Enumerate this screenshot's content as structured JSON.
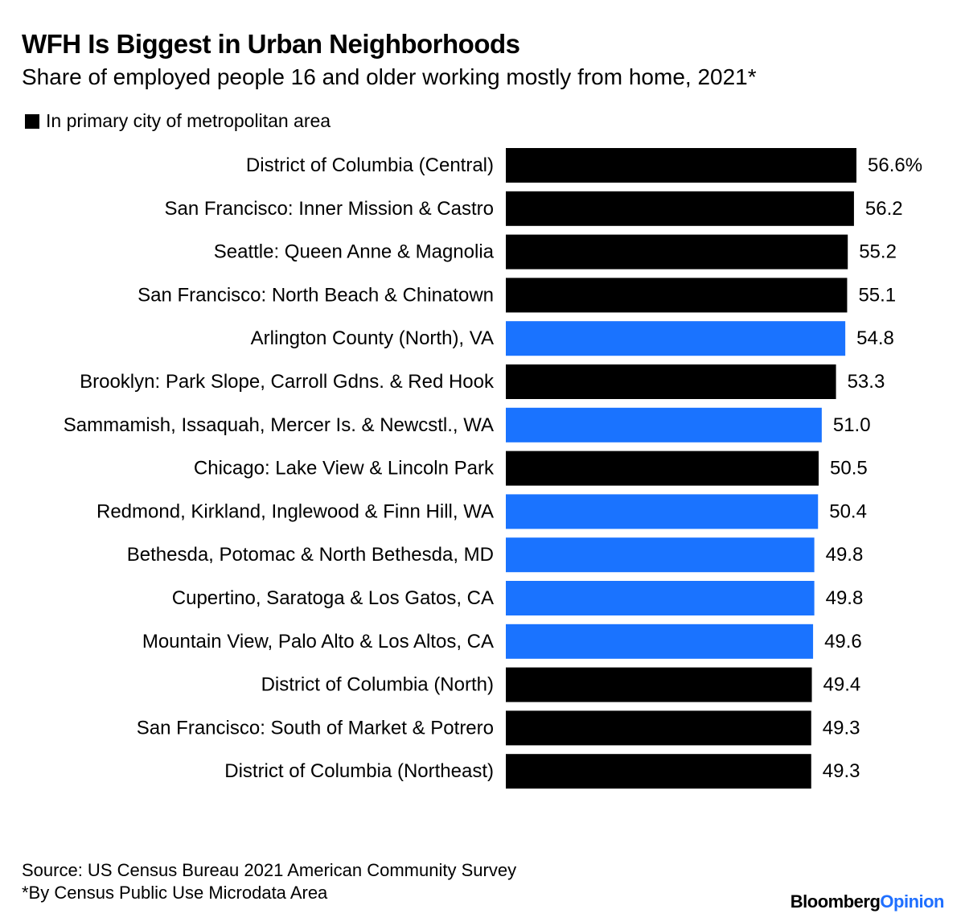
{
  "chart_data": {
    "type": "bar",
    "orientation": "horizontal",
    "title": "WFH Is Biggest in Urban Neighborhoods",
    "subtitle": "Share of employed people 16 and older working mostly from home, 2021*",
    "legend": {
      "label": "In primary city of metropolitan area",
      "color": "#000000",
      "placement": "top-left"
    },
    "colors": {
      "primary_city": "#000000",
      "other": "#1a73ff"
    },
    "value_suffix_first": "%",
    "categories": [
      "District of Columbia (Central)",
      "San Francisco: Inner Mission & Castro",
      "Seattle: Queen Anne & Magnolia",
      "San Francisco: North Beach & Chinatown",
      "Arlington County (North), VA",
      "Brooklyn: Park Slope, Carroll Gdns. & Red Hook",
      "Sammamish, Issaquah, Mercer Is. & Newcstl., WA",
      "Chicago: Lake View & Lincoln Park",
      "Redmond, Kirkland, Inglewood & Finn Hill, WA",
      "Bethesda, Potomac & North Bethesda, MD",
      "Cupertino, Saratoga & Los Gatos, CA",
      "Mountain View, Palo Alto & Los Altos, CA",
      "District of Columbia (North)",
      "San Francisco: South of Market & Potrero",
      "District of Columbia (Northeast)"
    ],
    "values": [
      56.6,
      56.2,
      55.2,
      55.1,
      54.8,
      53.3,
      51.0,
      50.5,
      50.4,
      49.8,
      49.8,
      49.6,
      49.4,
      49.3,
      49.3
    ],
    "value_labels": [
      "56.6%",
      "56.2",
      "55.2",
      "55.1",
      "54.8",
      "53.3",
      "51.0",
      "50.5",
      "50.4",
      "49.8",
      "49.8",
      "49.6",
      "49.4",
      "49.3",
      "49.3"
    ],
    "primary_city": [
      true,
      true,
      true,
      true,
      false,
      true,
      false,
      true,
      false,
      false,
      false,
      false,
      true,
      true,
      true
    ],
    "xlim": [
      0,
      56.6
    ],
    "grid": false
  },
  "footer": {
    "source": "Source: US Census Bureau 2021 American Community Survey",
    "note": "*By Census Public Use Microdata Area"
  },
  "brand": {
    "part1": "Bloomberg",
    "part2": "Opinion"
  }
}
